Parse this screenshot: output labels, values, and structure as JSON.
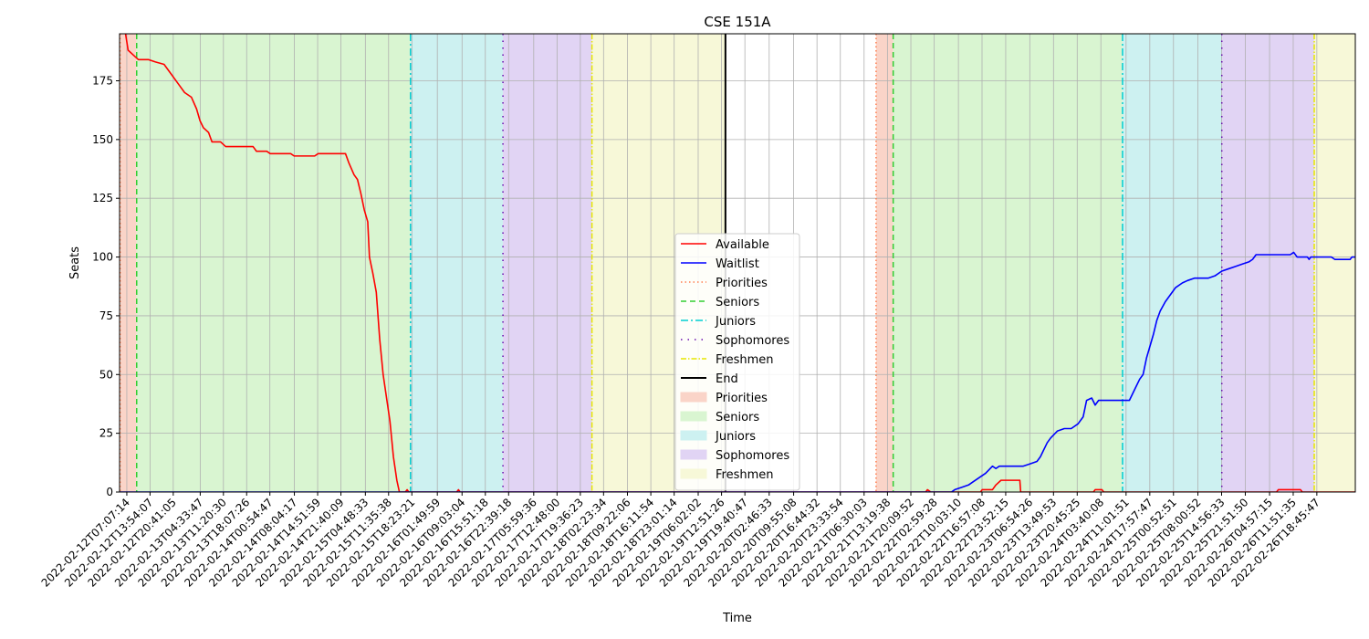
{
  "chart_data": {
    "type": "line",
    "title": "CSE 151A",
    "xlabel": "Time",
    "ylabel": "Seats",
    "ylim": [
      0,
      195
    ],
    "yticks": [
      0,
      25,
      50,
      75,
      100,
      125,
      150,
      175
    ],
    "grid": true,
    "legend_placement": "center",
    "x_start": "2022-02-12T05:00:00",
    "x_end": "2022-02-27T06:00:00",
    "xticks": [
      "2022-02-12T07:07:14",
      "2022-02-12T13:54:07",
      "2022-02-12T20:41:05",
      "2022-02-13T04:33:47",
      "2022-02-13T11:20:30",
      "2022-02-13T18:07:26",
      "2022-02-14T00:54:47",
      "2022-02-14T08:04:17",
      "2022-02-14T14:51:59",
      "2022-02-14T21:40:09",
      "2022-02-15T04:48:33",
      "2022-02-15T11:35:38",
      "2022-02-15T18:23:21",
      "2022-02-16T01:49:59",
      "2022-02-16T09:03:04",
      "2022-02-16T15:51:18",
      "2022-02-16T22:39:18",
      "2022-02-17T05:59:36",
      "2022-02-17T12:48:00",
      "2022-02-17T19:36:23",
      "2022-02-18T02:23:34",
      "2022-02-18T09:22:06",
      "2022-02-18T16:11:54",
      "2022-02-18T23:01:14",
      "2022-02-19T06:02:02",
      "2022-02-19T12:51:26",
      "2022-02-19T19:40:47",
      "2022-02-20T02:46:33",
      "2022-02-20T09:55:08",
      "2022-02-20T16:44:32",
      "2022-02-20T23:33:54",
      "2022-02-21T06:30:03",
      "2022-02-21T13:19:38",
      "2022-02-21T20:09:52",
      "2022-02-22T02:59:28",
      "2022-02-22T10:03:10",
      "2022-02-22T16:57:08",
      "2022-02-22T23:52:15",
      "2022-02-23T06:54:26",
      "2022-02-23T13:49:53",
      "2022-02-23T20:45:25",
      "2022-02-24T03:40:08",
      "2022-02-24T11:01:51",
      "2022-02-24T17:57:47",
      "2022-02-25T00:52:51",
      "2022-02-25T08:00:52",
      "2022-02-25T14:56:33",
      "2022-02-25T21:51:50",
      "2022-02-26T04:57:15",
      "2022-02-26T11:51:35",
      "2022-02-26T18:45:47"
    ],
    "series": [
      {
        "name": "Available",
        "color": "#ff0000",
        "points": [
          [
            "2022-02-12T05:00:00",
            200
          ],
          [
            "2022-02-12T06:45:00",
            195
          ],
          [
            "2022-02-12T07:30:00",
            188
          ],
          [
            "2022-02-12T09:00:00",
            186
          ],
          [
            "2022-02-12T10:30:00",
            184
          ],
          [
            "2022-02-12T13:30:00",
            184
          ],
          [
            "2022-02-12T15:30:00",
            183
          ],
          [
            "2022-02-12T18:00:00",
            182
          ],
          [
            "2022-02-12T20:00:00",
            178
          ],
          [
            "2022-02-12T22:00:00",
            174
          ],
          [
            "2022-02-13T00:00:00",
            170
          ],
          [
            "2022-02-13T02:00:00",
            168
          ],
          [
            "2022-02-13T03:30:00",
            163
          ],
          [
            "2022-02-13T04:30:00",
            158
          ],
          [
            "2022-02-13T05:30:00",
            155
          ],
          [
            "2022-02-13T07:00:00",
            153
          ],
          [
            "2022-02-13T08:00:00",
            149
          ],
          [
            "2022-02-13T10:30:00",
            149
          ],
          [
            "2022-02-13T12:00:00",
            147
          ],
          [
            "2022-02-13T20:00:00",
            147
          ],
          [
            "2022-02-13T21:00:00",
            145
          ],
          [
            "2022-02-14T00:00:00",
            145
          ],
          [
            "2022-02-14T01:00:00",
            144
          ],
          [
            "2022-02-14T07:00:00",
            144
          ],
          [
            "2022-02-14T08:00:00",
            143
          ],
          [
            "2022-02-14T14:00:00",
            143
          ],
          [
            "2022-02-14T15:00:00",
            144
          ],
          [
            "2022-02-14T23:00:00",
            144
          ],
          [
            "2022-02-15T00:00:00",
            140
          ],
          [
            "2022-02-15T01:30:00",
            135
          ],
          [
            "2022-02-15T02:30:00",
            133
          ],
          [
            "2022-02-15T03:30:00",
            127
          ],
          [
            "2022-02-15T04:30:00",
            120
          ],
          [
            "2022-02-15T05:30:00",
            115
          ],
          [
            "2022-02-15T06:00:00",
            100
          ],
          [
            "2022-02-15T07:00:00",
            93
          ],
          [
            "2022-02-15T08:00:00",
            85
          ],
          [
            "2022-02-15T09:00:00",
            65
          ],
          [
            "2022-02-15T10:00:00",
            50
          ],
          [
            "2022-02-15T11:00:00",
            40
          ],
          [
            "2022-02-15T12:00:00",
            30
          ],
          [
            "2022-02-15T13:00:00",
            15
          ],
          [
            "2022-02-15T14:00:00",
            5
          ],
          [
            "2022-02-15T14:45:00",
            0
          ],
          [
            "2022-02-15T16:30:00",
            0
          ],
          [
            "2022-02-15T17:00:00",
            1
          ],
          [
            "2022-02-15T17:30:00",
            0
          ],
          [
            "2022-02-16T07:30:00",
            0
          ],
          [
            "2022-02-16T08:00:00",
            1
          ],
          [
            "2022-02-16T08:30:00",
            0
          ],
          [
            "2022-02-22T00:30:00",
            0
          ],
          [
            "2022-02-22T01:00:00",
            1
          ],
          [
            "2022-02-22T02:00:00",
            0
          ],
          [
            "2022-02-22T16:30:00",
            0
          ],
          [
            "2022-02-22T17:00:00",
            1
          ],
          [
            "2022-02-22T20:00:00",
            1
          ],
          [
            "2022-02-22T21:00:00",
            3
          ],
          [
            "2022-02-22T22:30:00",
            5
          ],
          [
            "2022-02-23T04:00:00",
            5
          ],
          [
            "2022-02-23T04:15:00",
            0
          ],
          [
            "2022-02-24T01:30:00",
            0
          ],
          [
            "2022-02-24T02:00:00",
            1
          ],
          [
            "2022-02-24T04:00:00",
            1
          ],
          [
            "2022-02-24T04:30:00",
            0
          ],
          [
            "2022-02-26T07:00:00",
            0
          ],
          [
            "2022-02-26T07:30:00",
            1
          ],
          [
            "2022-02-26T14:00:00",
            1
          ],
          [
            "2022-02-26T14:30:00",
            0
          ],
          [
            "2022-02-27T06:00:00",
            0
          ]
        ]
      },
      {
        "name": "Waitlist",
        "color": "#0000ff",
        "points": [
          [
            "2022-02-12T05:00:00",
            0
          ],
          [
            "2022-02-22T08:00:00",
            0
          ],
          [
            "2022-02-22T09:00:00",
            1
          ],
          [
            "2022-02-22T11:00:00",
            2
          ],
          [
            "2022-02-22T13:00:00",
            3
          ],
          [
            "2022-02-22T14:00:00",
            4
          ],
          [
            "2022-02-22T16:00:00",
            6
          ],
          [
            "2022-02-22T18:00:00",
            8
          ],
          [
            "2022-02-22T20:00:00",
            11
          ],
          [
            "2022-02-22T21:00:00",
            10
          ],
          [
            "2022-02-22T22:00:00",
            11
          ],
          [
            "2022-02-23T05:00:00",
            11
          ],
          [
            "2022-02-23T07:00:00",
            12
          ],
          [
            "2022-02-23T09:00:00",
            13
          ],
          [
            "2022-02-23T10:00:00",
            15
          ],
          [
            "2022-02-23T11:00:00",
            18
          ],
          [
            "2022-02-23T12:00:00",
            21
          ],
          [
            "2022-02-23T13:00:00",
            23
          ],
          [
            "2022-02-23T15:00:00",
            26
          ],
          [
            "2022-02-23T17:00:00",
            27
          ],
          [
            "2022-02-23T19:00:00",
            27
          ],
          [
            "2022-02-23T21:00:00",
            29
          ],
          [
            "2022-02-23T22:30:00",
            32
          ],
          [
            "2022-02-23T23:30:00",
            39
          ],
          [
            "2022-02-24T01:00:00",
            40
          ],
          [
            "2022-02-24T02:00:00",
            37
          ],
          [
            "2022-02-24T03:00:00",
            39
          ],
          [
            "2022-02-24T12:00:00",
            39
          ],
          [
            "2022-02-24T13:00:00",
            42
          ],
          [
            "2022-02-24T14:00:00",
            45
          ],
          [
            "2022-02-24T15:00:00",
            48
          ],
          [
            "2022-02-24T16:00:00",
            50
          ],
          [
            "2022-02-24T17:00:00",
            57
          ],
          [
            "2022-02-24T18:00:00",
            62
          ],
          [
            "2022-02-24T19:00:00",
            67
          ],
          [
            "2022-02-24T20:00:00",
            73
          ],
          [
            "2022-02-24T21:00:00",
            77
          ],
          [
            "2022-02-24T22:30:00",
            81
          ],
          [
            "2022-02-25T00:00:00",
            84
          ],
          [
            "2022-02-25T01:30:00",
            87
          ],
          [
            "2022-02-25T03:30:00",
            89
          ],
          [
            "2022-02-25T05:00:00",
            90
          ],
          [
            "2022-02-25T07:00:00",
            91
          ],
          [
            "2022-02-25T09:00:00",
            91
          ],
          [
            "2022-02-25T11:00:00",
            91
          ],
          [
            "2022-02-25T13:00:00",
            92
          ],
          [
            "2022-02-25T15:00:00",
            94
          ],
          [
            "2022-02-25T17:00:00",
            95
          ],
          [
            "2022-02-25T19:00:00",
            96
          ],
          [
            "2022-02-25T21:00:00",
            97
          ],
          [
            "2022-02-25T23:00:00",
            98
          ],
          [
            "2022-02-26T00:00:00",
            99
          ],
          [
            "2022-02-26T01:00:00",
            101
          ],
          [
            "2022-02-26T11:00:00",
            101
          ],
          [
            "2022-02-26T12:00:00",
            102
          ],
          [
            "2022-02-26T13:00:00",
            100
          ],
          [
            "2022-02-26T16:00:00",
            100
          ],
          [
            "2022-02-26T16:30:00",
            99
          ],
          [
            "2022-02-26T17:00:00",
            100
          ],
          [
            "2022-02-26T23:00:00",
            100
          ],
          [
            "2022-02-27T00:00:00",
            99
          ],
          [
            "2022-02-27T04:30:00",
            99
          ],
          [
            "2022-02-27T05:00:00",
            100
          ],
          [
            "2022-02-27T06:00:00",
            100
          ]
        ]
      }
    ],
    "vlines": [
      {
        "name": "Priorities",
        "at": "2022-02-12T05:10:00",
        "color": "#ff7f50",
        "dash": "1.5,3"
      },
      {
        "name": "Priorities",
        "at": "2022-02-21T10:00:00",
        "color": "#ff7f50",
        "dash": "1.5,3"
      },
      {
        "name": "Seniors",
        "at": "2022-02-12T10:00:00",
        "color": "#32cd32",
        "dash": "6,4"
      },
      {
        "name": "Seniors",
        "at": "2022-02-21T15:00:00",
        "color": "#32cd32",
        "dash": "6,4"
      },
      {
        "name": "Juniors",
        "at": "2022-02-15T18:00:00",
        "color": "#00ced1",
        "dash": "8,3,2,3"
      },
      {
        "name": "Juniors",
        "at": "2022-02-24T10:00:00",
        "color": "#00ced1",
        "dash": "8,3,2,3"
      },
      {
        "name": "Sophomores",
        "at": "2022-02-16T21:00:00",
        "color": "#6a0dad",
        "dash": "1.5,6"
      },
      {
        "name": "Sophomores",
        "at": "2022-02-25T15:00:00",
        "color": "#6a0dad",
        "dash": "1.5,6"
      },
      {
        "name": "Freshmen",
        "at": "2022-02-17T23:00:00",
        "color": "#e6e600",
        "dash": "6,2,1.5,2"
      },
      {
        "name": "Freshmen",
        "at": "2022-02-26T18:00:00",
        "color": "#e6e600",
        "dash": "6,2,1.5,2"
      },
      {
        "name": "End",
        "at": "2022-02-19T14:00:00",
        "color": "#000000",
        "dash": ""
      },
      {
        "name": "End",
        "at": "2022-02-28T09:00:00",
        "color": "#000000",
        "dash": ""
      }
    ],
    "spans": [
      {
        "name": "Priorities",
        "from": "2022-02-12T05:10:00",
        "to": "2022-02-12T10:00:00",
        "color": "#fad4c8"
      },
      {
        "name": "Seniors",
        "from": "2022-02-12T10:00:00",
        "to": "2022-02-15T18:00:00",
        "color": "#d9f5d1"
      },
      {
        "name": "Juniors",
        "from": "2022-02-15T18:00:00",
        "to": "2022-02-16T21:00:00",
        "color": "#cdf1f1"
      },
      {
        "name": "Sophomores",
        "from": "2022-02-16T21:00:00",
        "to": "2022-02-17T23:00:00",
        "color": "#e1d4f4"
      },
      {
        "name": "Freshmen",
        "from": "2022-02-17T23:00:00",
        "to": "2022-02-19T14:00:00",
        "color": "#f7f8d8"
      },
      {
        "name": "Priorities",
        "from": "2022-02-21T10:00:00",
        "to": "2022-02-21T15:00:00",
        "color": "#fad4c8"
      },
      {
        "name": "Seniors",
        "from": "2022-02-21T15:00:00",
        "to": "2022-02-24T10:00:00",
        "color": "#d9f5d1"
      },
      {
        "name": "Juniors",
        "from": "2022-02-24T10:00:00",
        "to": "2022-02-25T15:00:00",
        "color": "#cdf1f1"
      },
      {
        "name": "Sophomores",
        "from": "2022-02-25T15:00:00",
        "to": "2022-02-26T18:00:00",
        "color": "#e1d4f4"
      },
      {
        "name": "Freshmen",
        "from": "2022-02-26T18:00:00",
        "to": "2022-02-28T09:00:00",
        "color": "#f7f8d8"
      }
    ],
    "legend": [
      {
        "label": "Available",
        "kind": "line",
        "color": "#ff0000",
        "dash": ""
      },
      {
        "label": "Waitlist",
        "kind": "line",
        "color": "#0000ff",
        "dash": ""
      },
      {
        "label": "Priorities",
        "kind": "line",
        "color": "#ff7f50",
        "dash": "1.5,3"
      },
      {
        "label": "Seniors",
        "kind": "line",
        "color": "#32cd32",
        "dash": "6,4"
      },
      {
        "label": "Juniors",
        "kind": "line",
        "color": "#00ced1",
        "dash": "8,3,2,3"
      },
      {
        "label": "Sophomores",
        "kind": "line",
        "color": "#6a0dad",
        "dash": "1.5,6"
      },
      {
        "label": "Freshmen",
        "kind": "line",
        "color": "#e6e600",
        "dash": "6,2,1.5,2"
      },
      {
        "label": "End",
        "kind": "line",
        "color": "#000000",
        "dash": ""
      },
      {
        "label": "Priorities",
        "kind": "patch",
        "color": "#fad4c8"
      },
      {
        "label": "Seniors",
        "kind": "patch",
        "color": "#d9f5d1"
      },
      {
        "label": "Juniors",
        "kind": "patch",
        "color": "#cdf1f1"
      },
      {
        "label": "Sophomores",
        "kind": "patch",
        "color": "#e1d4f4"
      },
      {
        "label": "Freshmen",
        "kind": "patch",
        "color": "#f7f8d8"
      }
    ]
  }
}
